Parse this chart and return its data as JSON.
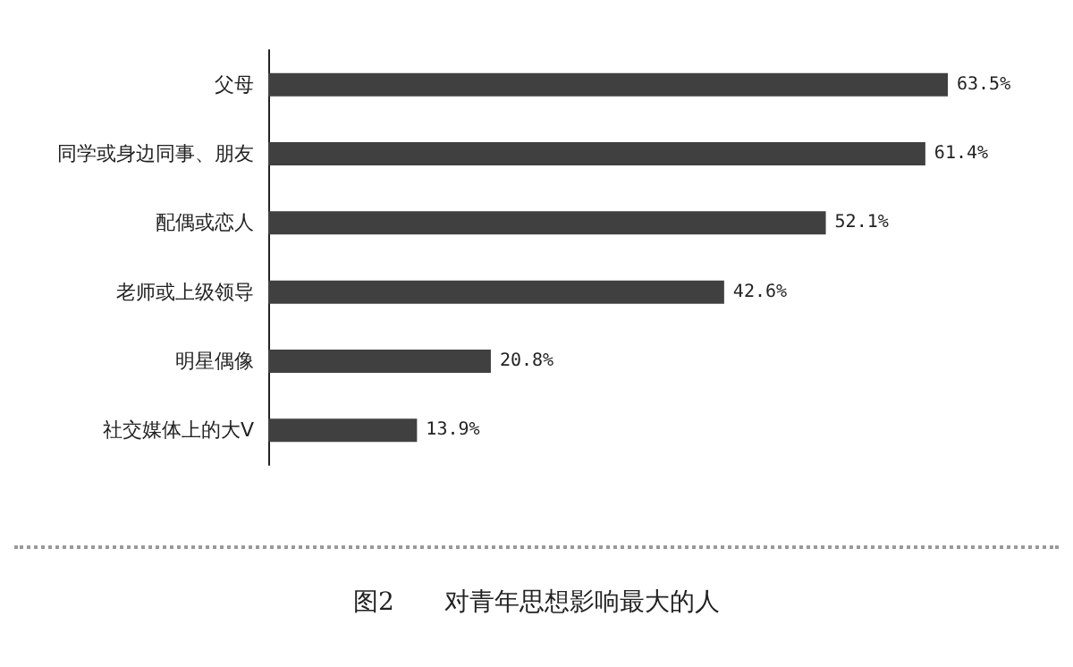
{
  "chart_data": {
    "type": "bar",
    "orientation": "horizontal",
    "title": "图2　　对青年思想影响最大的人",
    "categories": [
      "父母",
      "同学或身边同事、朋友",
      "配偶或恋人",
      "老师或上级领导",
      "明星偶像",
      "社交媒体上的大V"
    ],
    "values": [
      63.5,
      61.4,
      52.1,
      42.6,
      20.8,
      13.9
    ],
    "value_labels": [
      "63.5%",
      "61.4%",
      "52.1%",
      "42.6%",
      "20.8%",
      "13.9%"
    ],
    "color": "#404040"
  }
}
